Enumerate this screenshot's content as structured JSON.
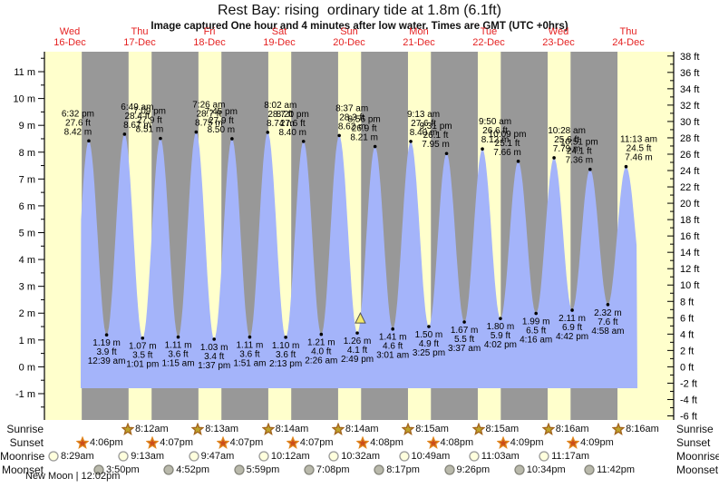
{
  "header": {
    "title": "Rest Bay: rising  ordinary tide at 1.8m (6.1ft)",
    "subtitle": "Image captured One hour and 4 minutes after low water. Times are GMT (UTC +0hrs)"
  },
  "colors": {
    "day_band": "#ffffcc",
    "night_band": "#989898",
    "tide_fill": "#a4b4fa",
    "date_label": "#e52222",
    "axis": "#000000",
    "marker_fill": "#f2e868",
    "marker_stroke": "#555555"
  },
  "chart_data": {
    "type": "area",
    "title": "Rest Bay: rising  ordinary tide at 1.8m (6.1ft)",
    "x_days": [
      {
        "weekday": "Wed",
        "date": "16-Dec"
      },
      {
        "weekday": "Thu",
        "date": "17-Dec"
      },
      {
        "weekday": "Fri",
        "date": "18-Dec"
      },
      {
        "weekday": "Sat",
        "date": "19-Dec"
      },
      {
        "weekday": "Sun",
        "date": "20-Dec"
      },
      {
        "weekday": "Mon",
        "date": "21-Dec"
      },
      {
        "weekday": "Tue",
        "date": "22-Dec"
      },
      {
        "weekday": "Wed",
        "date": "23-Dec"
      },
      {
        "weekday": "Thu",
        "date": "24-Dec"
      }
    ],
    "y_axis_left": {
      "unit": "m",
      "max": 11,
      "min": -1,
      "step": 1
    },
    "y_axis_right": {
      "unit": "ft",
      "max": 38,
      "min": -6,
      "step": 2
    },
    "high_tides": [
      {
        "time": "6:32 pm",
        "ft": 27.6,
        "m": 8.42,
        "t": 0.7722
      },
      {
        "time": "6:49 am",
        "ft": 28.4,
        "m": 8.67,
        "t": 1.284
      },
      {
        "time": "7:09 pm",
        "ft": 27.9,
        "m": 8.51,
        "t": 1.7979
      },
      {
        "time": "7:26 am",
        "ft": 28.7,
        "m": 8.75,
        "t": 2.3097
      },
      {
        "time": "7:45 pm",
        "ft": 27.9,
        "m": 8.5,
        "t": 2.8229
      },
      {
        "time": "8:02 am",
        "ft": 28.7,
        "m": 8.74,
        "t": 3.3347
      },
      {
        "time": "8:20 pm",
        "ft": 27.6,
        "m": 8.4,
        "t": 3.8472
      },
      {
        "time": "8:37 am",
        "ft": 28.3,
        "m": 8.62,
        "t": 4.359
      },
      {
        "time": "8:56 pm",
        "ft": 26.9,
        "m": 8.21,
        "t": 4.8722
      },
      {
        "time": "9:13 am",
        "ft": 27.6,
        "m": 8.4,
        "t": 5.384
      },
      {
        "time": "9:31 pm",
        "ft": 26.1,
        "m": 7.95,
        "t": 5.8965
      },
      {
        "time": "9:50 am",
        "ft": 26.6,
        "m": 8.12,
        "t": 6.4097
      },
      {
        "time": "10:09 pm",
        "ft": 25.1,
        "m": 7.66,
        "t": 6.9229
      },
      {
        "time": "10:28 am",
        "ft": 25.6,
        "m": 7.79,
        "t": 7.4361
      },
      {
        "time": "10:51 pm",
        "ft": 24.1,
        "m": 7.36,
        "t": 7.9521
      },
      {
        "time": "11:13 am",
        "ft": 24.5,
        "m": 7.46,
        "t": 8.4674
      }
    ],
    "low_tides": [
      {
        "time": "12:39 am",
        "ft": 3.9,
        "m": 1.19,
        "t": 1.0271
      },
      {
        "time": "1:01 pm",
        "ft": 3.5,
        "m": 1.07,
        "t": 1.5424
      },
      {
        "time": "1:15 am",
        "ft": 3.6,
        "m": 1.11,
        "t": 2.0521
      },
      {
        "time": "1:37 pm",
        "ft": 3.4,
        "m": 1.03,
        "t": 2.5674
      },
      {
        "time": "1:51 am",
        "ft": 3.6,
        "m": 1.11,
        "t": 3.0771
      },
      {
        "time": "2:13 pm",
        "ft": 3.6,
        "m": 1.1,
        "t": 3.5924
      },
      {
        "time": "2:26 am",
        "ft": 4.0,
        "m": 1.21,
        "t": 4.1014
      },
      {
        "time": "2:49 pm",
        "ft": 4.1,
        "m": 1.26,
        "t": 4.6174
      },
      {
        "time": "3:01 am",
        "ft": 4.6,
        "m": 1.41,
        "t": 5.1257
      },
      {
        "time": "3:25 pm",
        "ft": 4.9,
        "m": 1.5,
        "t": 5.6424
      },
      {
        "time": "3:37 am",
        "ft": 5.5,
        "m": 1.67,
        "t": 6.1507
      },
      {
        "time": "4:02 pm",
        "ft": 5.9,
        "m": 1.8,
        "t": 6.6681
      },
      {
        "time": "4:16 am",
        "ft": 6.5,
        "m": 1.99,
        "t": 7.1778
      },
      {
        "time": "4:42 pm",
        "ft": 6.9,
        "m": 2.11,
        "t": 7.6958
      },
      {
        "time": "4:58 am",
        "ft": 7.6,
        "m": 2.32,
        "t": 8.2069
      }
    ],
    "curve_endpoints": [
      {
        "t": 0.517,
        "m": 1.15
      },
      {
        "t": 8.736,
        "m": 2.55
      }
    ],
    "current_marker": {
      "t": 4.6618,
      "m": 1.8
    }
  },
  "astro": {
    "rows": [
      {
        "label": "Sunrise",
        "icon": "sunrise-star",
        "start_day": 1,
        "times": [
          "8:12am",
          "8:13am",
          "8:14am",
          "8:14am",
          "8:15am",
          "8:15am",
          "8:16am",
          "8:16am"
        ]
      },
      {
        "label": "Sunset",
        "icon": "sunset-star",
        "start_day": 0,
        "times": [
          "4:06pm",
          "4:07pm",
          "4:07pm",
          "4:07pm",
          "4:08pm",
          "4:08pm",
          "4:09pm",
          "4:09pm"
        ]
      },
      {
        "label": "Moonrise",
        "icon": "moonrise-circle",
        "start_day": 0,
        "times": [
          "8:29am",
          "9:13am",
          "9:47am",
          "10:12am",
          "10:32am",
          "10:49am",
          "11:03am",
          "11:17am"
        ]
      },
      {
        "label": "Moonset",
        "icon": "moonset-circle",
        "start_day": 0,
        "times": [
          "3:50pm",
          "4:52pm",
          "5:59pm",
          "7:08pm",
          "8:17pm",
          "9:26pm",
          "10:34pm",
          "11:42pm"
        ]
      }
    ],
    "icons": {
      "sunrise-star": {
        "shape": "star",
        "fill": "#bda32b",
        "stroke": "#a3641c"
      },
      "sunset-star": {
        "shape": "star",
        "fill": "#cc4e1a",
        "stroke": "#e0861e"
      },
      "moonrise-circle": {
        "shape": "circle",
        "fill": "#ffffdd",
        "stroke": "#999999"
      },
      "moonset-circle": {
        "shape": "circle",
        "fill": "#b9b9ab",
        "stroke": "#84847a"
      }
    },
    "moon_phase": "New Moon | 12:02pm"
  }
}
